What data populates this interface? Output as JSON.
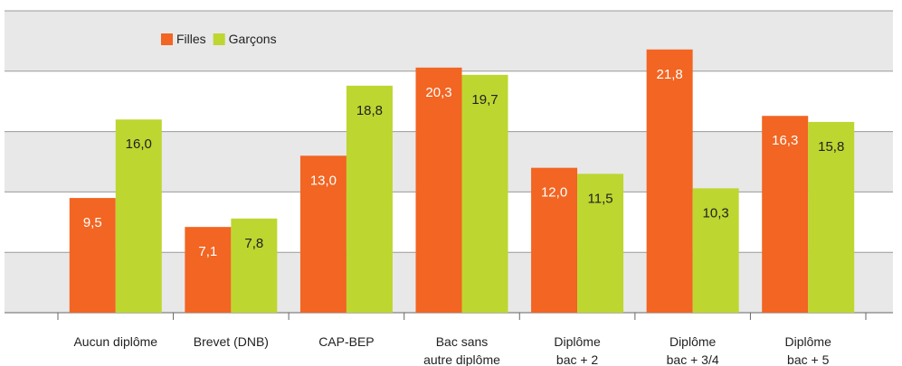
{
  "chart_data": {
    "type": "bar",
    "categories": [
      "Aucun diplôme",
      "Brevet (DNB)",
      "CAP-BEP",
      "Bac sans\nautre diplôme",
      "Diplôme\nbac + 2",
      "Diplôme\nbac + 3/4",
      "Diplôme\nbac + 5"
    ],
    "series": [
      {
        "name": "Filles",
        "color": "#f26522",
        "values": [
          9.5,
          7.1,
          13.0,
          20.3,
          12.0,
          21.8,
          16.3
        ],
        "value_labels": [
          "9,5",
          "7,1",
          "13,0",
          "20,3",
          "12,0",
          "21,8",
          "16,3"
        ]
      },
      {
        "name": "Garçons",
        "color": "#bed630",
        "values": [
          16.0,
          7.8,
          18.8,
          19.7,
          11.5,
          10.3,
          15.8
        ],
        "value_labels": [
          "16,0",
          "7,8",
          "18,8",
          "19,7",
          "11,5",
          "10,3",
          "15,8"
        ]
      }
    ],
    "ylim": [
      0,
      25
    ],
    "yticks": [
      0,
      5,
      10,
      15,
      20,
      25
    ],
    "grid": true,
    "legend": "top-left"
  }
}
